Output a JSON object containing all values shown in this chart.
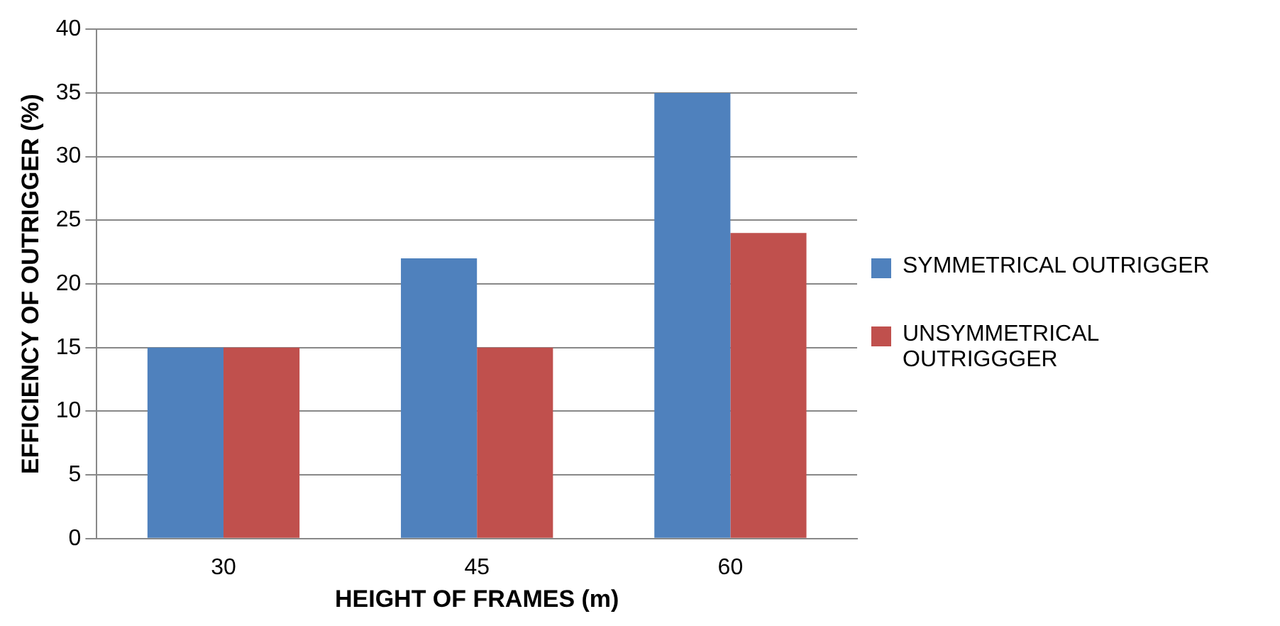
{
  "chart_data": {
    "type": "bar",
    "xlabel": "HEIGHT OF FRAMES (m)",
    "ylabel": "EFFICIENCY OF OUTRIGGER (%)",
    "categories": [
      "30",
      "45",
      "60"
    ],
    "series": [
      {
        "name": "SYMMETRICAL OUTRIGGER",
        "color": "#4f81bd",
        "values": [
          15,
          22,
          35
        ]
      },
      {
        "name": "UNSYMMETRICAL OUTRIGGGER",
        "color": "#c0504d",
        "values": [
          15,
          15,
          24
        ]
      }
    ],
    "ylim": [
      0,
      40
    ],
    "yticks": [
      0,
      5,
      10,
      15,
      20,
      25,
      30,
      35,
      40
    ],
    "grid": "y",
    "legend": "right"
  }
}
